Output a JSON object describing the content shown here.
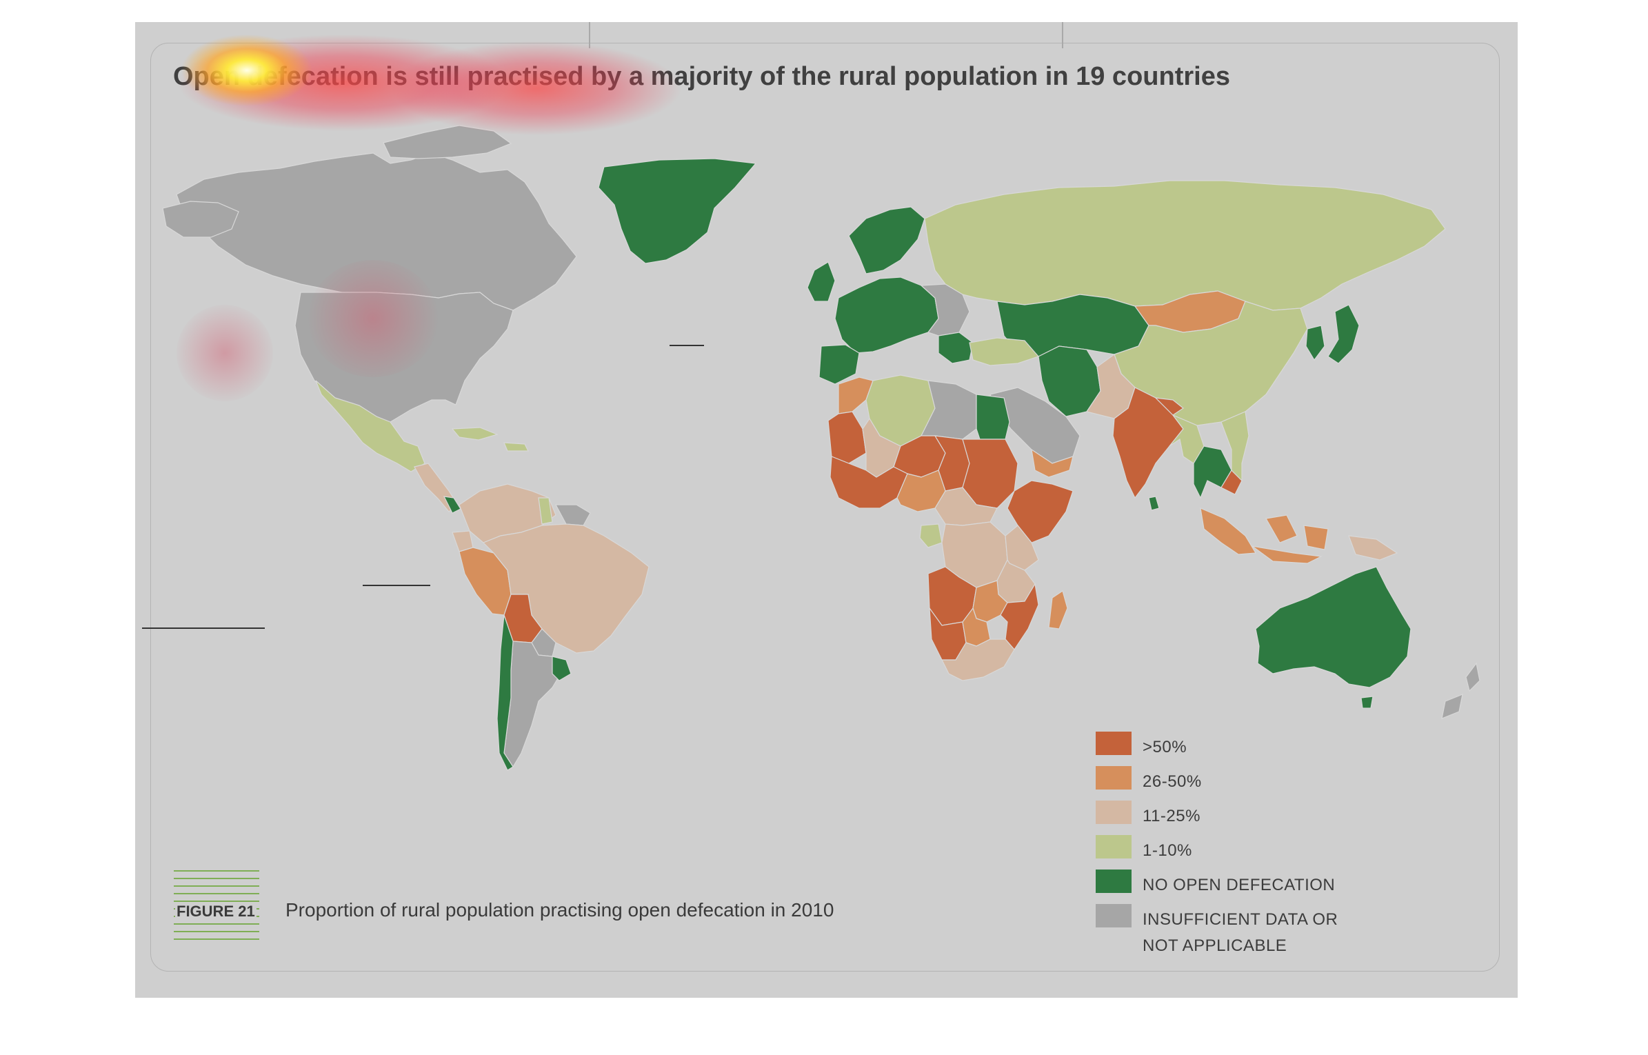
{
  "title": "Open defecation is still practised by a majority of the rural population in 19 countries",
  "figure": {
    "number": "FIGURE 21",
    "caption": "Proportion of rural population practising open defecation in 2010"
  },
  "colors": {
    "page_background": "#cfcfcf",
    "ocean": "#cfcfcf",
    "over_50": "#c4623a",
    "from_26_to_50": "#d68f5c",
    "from_11_to_25": "#d4b8a3",
    "from_1_to_10": "#bcc78c",
    "no_open_defecation": "#2e7a41",
    "insufficient_data": "#a6a6a6",
    "title_text": "#404040"
  },
  "legend": [
    {
      "label": ">50%",
      "color": "#c4623a"
    },
    {
      "label": "26-50%",
      "color": "#d68f5c"
    },
    {
      "label": "11-25%",
      "color": "#d4b8a3"
    },
    {
      "label": "1-10%",
      "color": "#bcc78c"
    },
    {
      "label": "NO OPEN DEFECATION",
      "color": "#2e7a41"
    },
    {
      "label_lines": [
        "INSUFFICIENT DATA OR",
        "NOT APPLICABLE"
      ],
      "color": "#a6a6a6"
    }
  ],
  "map_regions": [
    {
      "region": "Greenland",
      "category": "no_open_defecation"
    },
    {
      "region": "Canada",
      "category": "insufficient_data"
    },
    {
      "region": "United States",
      "category": "insufficient_data"
    },
    {
      "region": "Mexico",
      "category": "from_1_to_10"
    },
    {
      "region": "Central America",
      "category": "from_11_to_25"
    },
    {
      "region": "Costa Rica",
      "category": "no_open_defecation"
    },
    {
      "region": "Caribbean",
      "category": "from_1_to_10"
    },
    {
      "region": "Colombia / Venezuela",
      "category": "from_11_to_25"
    },
    {
      "region": "Guianas",
      "category": "insufficient_data"
    },
    {
      "region": "Suriname",
      "category": "from_1_to_10"
    },
    {
      "region": "Ecuador",
      "category": "from_11_to_25"
    },
    {
      "region": "Peru",
      "category": "from_26_to_50"
    },
    {
      "region": "Brazil",
      "category": "from_11_to_25"
    },
    {
      "region": "Bolivia",
      "category": "over_50"
    },
    {
      "region": "Paraguay",
      "category": "insufficient_data"
    },
    {
      "region": "Chile",
      "category": "no_open_defecation"
    },
    {
      "region": "Argentina",
      "category": "insufficient_data"
    },
    {
      "region": "Uruguay",
      "category": "no_open_defecation"
    },
    {
      "region": "Western Europe",
      "category": "no_open_defecation"
    },
    {
      "region": "Scandinavia",
      "category": "no_open_defecation"
    },
    {
      "region": "Central Europe",
      "category": "insufficient_data"
    },
    {
      "region": "Russia",
      "category": "from_1_to_10"
    },
    {
      "region": "Kazakhstan / Central Asia",
      "category": "no_open_defecation"
    },
    {
      "region": "Mongolia",
      "category": "from_26_to_50"
    },
    {
      "region": "China",
      "category": "from_1_to_10"
    },
    {
      "region": "Japan / Korea",
      "category": "no_open_defecation"
    },
    {
      "region": "Turkey",
      "category": "from_1_to_10"
    },
    {
      "region": "Iran",
      "category": "no_open_defecation"
    },
    {
      "region": "Arabian Peninsula",
      "category": "insufficient_data"
    },
    {
      "region": "Yemen",
      "category": "from_26_to_50"
    },
    {
      "region": "Afghanistan / Pakistan",
      "category": "from_11_to_25"
    },
    {
      "region": "India",
      "category": "over_50"
    },
    {
      "region": "Nepal",
      "category": "over_50"
    },
    {
      "region": "Sri Lanka",
      "category": "no_open_defecation"
    },
    {
      "region": "Myanmar",
      "category": "from_1_to_10"
    },
    {
      "region": "Thailand",
      "category": "no_open_defecation"
    },
    {
      "region": "Cambodia",
      "category": "over_50"
    },
    {
      "region": "Indonesia",
      "category": "from_26_to_50"
    },
    {
      "region": "Papua New Guinea",
      "category": "from_11_to_25"
    },
    {
      "region": "Australia",
      "category": "no_open_defecation"
    },
    {
      "region": "New Zealand",
      "category": "insufficient_data"
    },
    {
      "region": "Morocco",
      "category": "from_26_to_50"
    },
    {
      "region": "Algeria",
      "category": "from_1_to_10"
    },
    {
      "region": "Libya",
      "category": "insufficient_data"
    },
    {
      "region": "Egypt",
      "category": "no_open_defecation"
    },
    {
      "region": "Mauritania",
      "category": "over_50"
    },
    {
      "region": "Mali",
      "category": "from_11_to_25"
    },
    {
      "region": "Niger",
      "category": "over_50"
    },
    {
      "region": "Chad",
      "category": "over_50"
    },
    {
      "region": "Sudan",
      "category": "over_50"
    },
    {
      "region": "Ethiopia / Somalia",
      "category": "over_50"
    },
    {
      "region": "West Africa coast",
      "category": "over_50"
    },
    {
      "region": "Nigeria",
      "category": "from_26_to_50"
    },
    {
      "region": "Cameroon / CAR",
      "category": "from_11_to_25"
    },
    {
      "region": "Gabon",
      "category": "from_1_to_10"
    },
    {
      "region": "DR Congo",
      "category": "from_11_to_25"
    },
    {
      "region": "Kenya",
      "category": "from_11_to_25"
    },
    {
      "region": "Tanzania",
      "category": "from_11_to_25"
    },
    {
      "region": "Angola",
      "category": "over_50"
    },
    {
      "region": "Zambia",
      "category": "from_26_to_50"
    },
    {
      "region": "Mozambique",
      "category": "over_50"
    },
    {
      "region": "Namibia",
      "category": "over_50"
    },
    {
      "region": "Botswana",
      "category": "from_26_to_50"
    },
    {
      "region": "South Africa",
      "category": "from_11_to_25"
    },
    {
      "region": "Madagascar",
      "category": "from_26_to_50"
    }
  ]
}
